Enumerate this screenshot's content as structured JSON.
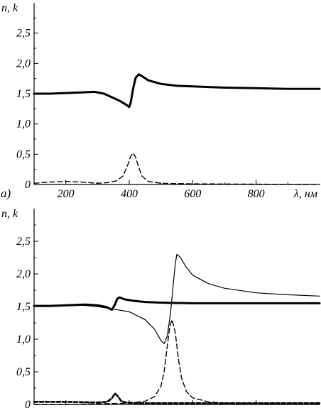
{
  "chart_data": [
    {
      "type": "line",
      "panel_label": "а)",
      "ylabel": "n, k",
      "xlabel": "λ, нм",
      "xlim": [
        100,
        1000
      ],
      "ylim": [
        0,
        3.0
      ],
      "xticks": [
        "200",
        "400",
        "600",
        "800"
      ],
      "xtick_values": [
        200,
        400,
        600,
        800
      ],
      "yticks": [
        "0",
        "0,5",
        "1,0",
        "1,5",
        "2,0",
        "2,5"
      ],
      "ytick_values": [
        0,
        0.5,
        1.0,
        1.5,
        2.0,
        2.5
      ],
      "series": [
        {
          "style": "thick-solid",
          "x": [
            100,
            150,
            200,
            250,
            290,
            320,
            350,
            370,
            390,
            400,
            405,
            412,
            420,
            430,
            440,
            460,
            500,
            550,
            600,
            700,
            800,
            900,
            1000
          ],
          "y": [
            1.5,
            1.5,
            1.51,
            1.52,
            1.53,
            1.5,
            1.43,
            1.38,
            1.32,
            1.28,
            1.36,
            1.58,
            1.76,
            1.82,
            1.79,
            1.72,
            1.66,
            1.63,
            1.62,
            1.6,
            1.59,
            1.58,
            1.58
          ]
        },
        {
          "style": "dashed",
          "x": [
            100,
            150,
            200,
            250,
            300,
            330,
            360,
            380,
            395,
            405,
            412,
            420,
            430,
            440,
            460,
            500,
            600,
            1000
          ],
          "y": [
            0.02,
            0.04,
            0.05,
            0.04,
            0.02,
            0.03,
            0.06,
            0.14,
            0.32,
            0.47,
            0.52,
            0.45,
            0.28,
            0.14,
            0.05,
            0.02,
            0.01,
            0.0
          ]
        }
      ]
    },
    {
      "type": "line",
      "ylabel": "n, k",
      "xlim": [
        100,
        1000
      ],
      "ylim": [
        0,
        3.0
      ],
      "yticks": [
        "0",
        "0,5",
        "1,0",
        "1,5",
        "2,0",
        "2,5"
      ],
      "ytick_values": [
        0,
        0.5,
        1.0,
        1.5,
        2.0,
        2.5
      ],
      "series": [
        {
          "style": "thick-solid",
          "x": [
            100,
            150,
            200,
            260,
            300,
            330,
            345,
            355,
            362,
            370,
            385,
            410,
            450,
            500,
            600,
            700,
            800,
            900,
            1000
          ],
          "y": [
            1.51,
            1.51,
            1.52,
            1.53,
            1.52,
            1.49,
            1.45,
            1.53,
            1.62,
            1.64,
            1.61,
            1.59,
            1.57,
            1.56,
            1.55,
            1.55,
            1.55,
            1.55,
            1.55
          ]
        },
        {
          "style": "thin-solid",
          "x": [
            100,
            150,
            200,
            250,
            300,
            350,
            400,
            450,
            480,
            500,
            510,
            520,
            530,
            540,
            545,
            550,
            560,
            580,
            600,
            650,
            700,
            800,
            900,
            1000
          ],
          "y": [
            1.5,
            1.5,
            1.51,
            1.52,
            1.5,
            1.46,
            1.42,
            1.3,
            1.15,
            0.98,
            0.93,
            1.05,
            1.4,
            1.9,
            2.15,
            2.3,
            2.26,
            2.1,
            1.98,
            1.85,
            1.78,
            1.71,
            1.68,
            1.66
          ]
        },
        {
          "style": "dashed",
          "x": [
            100,
            200,
            300,
            400,
            450,
            480,
            500,
            510,
            520,
            528,
            535,
            545,
            555,
            565,
            580,
            600,
            650,
            700,
            800,
            1000
          ],
          "y": [
            0.0,
            0.0,
            0.01,
            0.02,
            0.05,
            0.12,
            0.28,
            0.5,
            0.9,
            1.2,
            1.3,
            1.1,
            0.7,
            0.4,
            0.2,
            0.1,
            0.04,
            0.02,
            0.01,
            0.0
          ]
        },
        {
          "style": "dashed-heavy",
          "x": [
            100,
            200,
            300,
            330,
            345,
            355,
            365,
            375,
            390,
            420,
            500,
            600,
            800,
            1000
          ],
          "y": [
            0.04,
            0.04,
            0.03,
            0.04,
            0.09,
            0.17,
            0.12,
            0.05,
            0.03,
            0.02,
            0.02,
            0.02,
            0.02,
            0.02
          ]
        }
      ]
    }
  ]
}
